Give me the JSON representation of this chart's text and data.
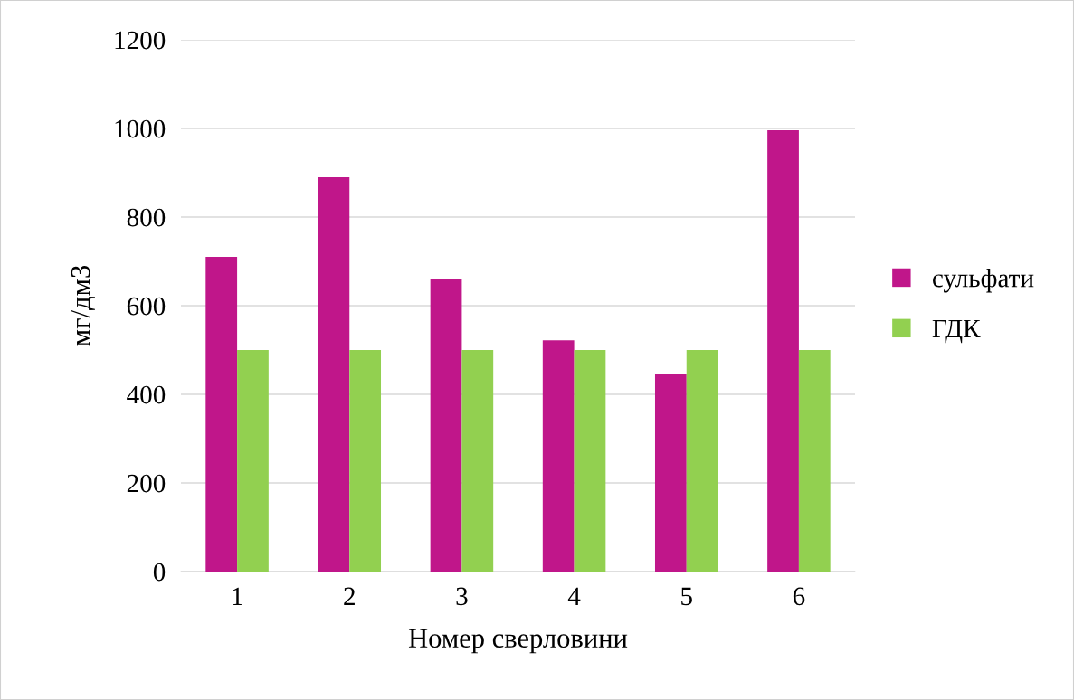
{
  "chart_data": {
    "type": "bar",
    "xlabel": "Номер сверловини",
    "ylabel": "мг/дм3",
    "categories": [
      "1",
      "2",
      "3",
      "4",
      "5",
      "6"
    ],
    "series": [
      {
        "name": "сульфати",
        "color": "#c0168a",
        "values": [
          710,
          890,
          660,
          522,
          447,
          996
        ]
      },
      {
        "name": "ГДК",
        "color": "#92d050",
        "values": [
          500,
          500,
          500,
          500,
          500,
          500
        ]
      }
    ],
    "ylim": [
      0,
      1200
    ],
    "yticks": [
      0,
      200,
      400,
      600,
      800,
      1000,
      1200
    ],
    "grid": "y",
    "legend": "right"
  }
}
